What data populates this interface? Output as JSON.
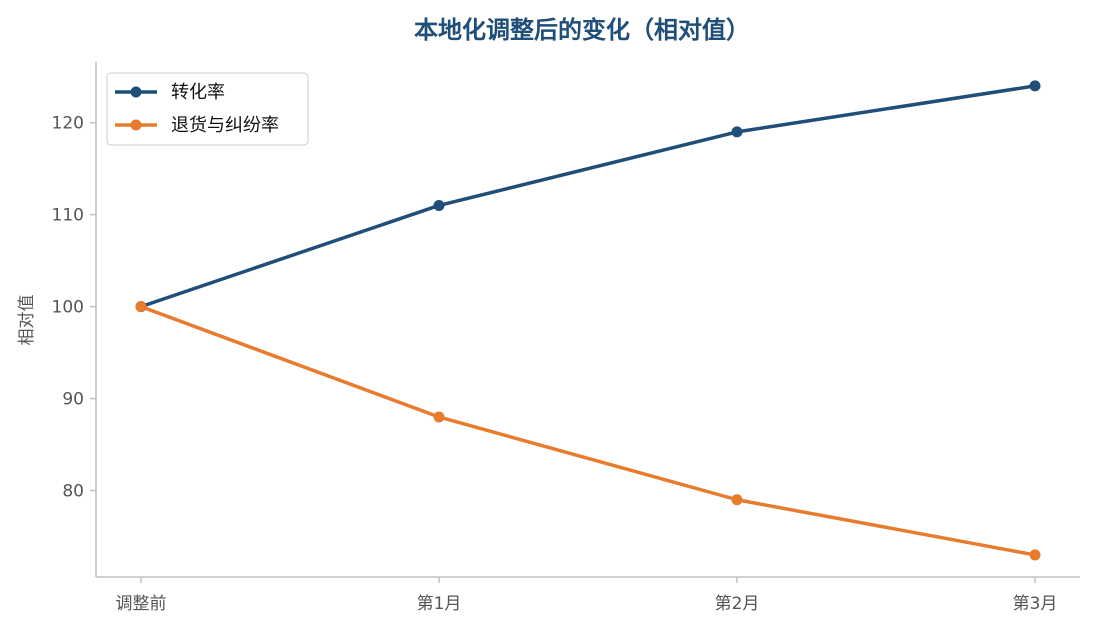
{
  "colors": {
    "title": "#1f4e79",
    "axis": "#bfbfbf",
    "tick_text": "#555555",
    "legend_border": "#cccccc"
  },
  "chart_data": {
    "type": "line",
    "title": "本地化调整后的变化（相对值）",
    "xlabel": "",
    "ylabel": "相对值",
    "categories": [
      "调整前",
      "第1月",
      "第2月",
      "第3月"
    ],
    "yticks": [
      80,
      90,
      100,
      110,
      120
    ],
    "ylim": [
      70.6,
      126.6
    ],
    "grid": false,
    "legend_position": "top-left",
    "series": [
      {
        "name": "转化率",
        "values": [
          100,
          111,
          119,
          124
        ],
        "color": "#1f4e79"
      },
      {
        "name": "退货与纠纷率",
        "values": [
          100,
          88,
          79,
          73
        ],
        "color": "#e77c2f"
      }
    ]
  }
}
